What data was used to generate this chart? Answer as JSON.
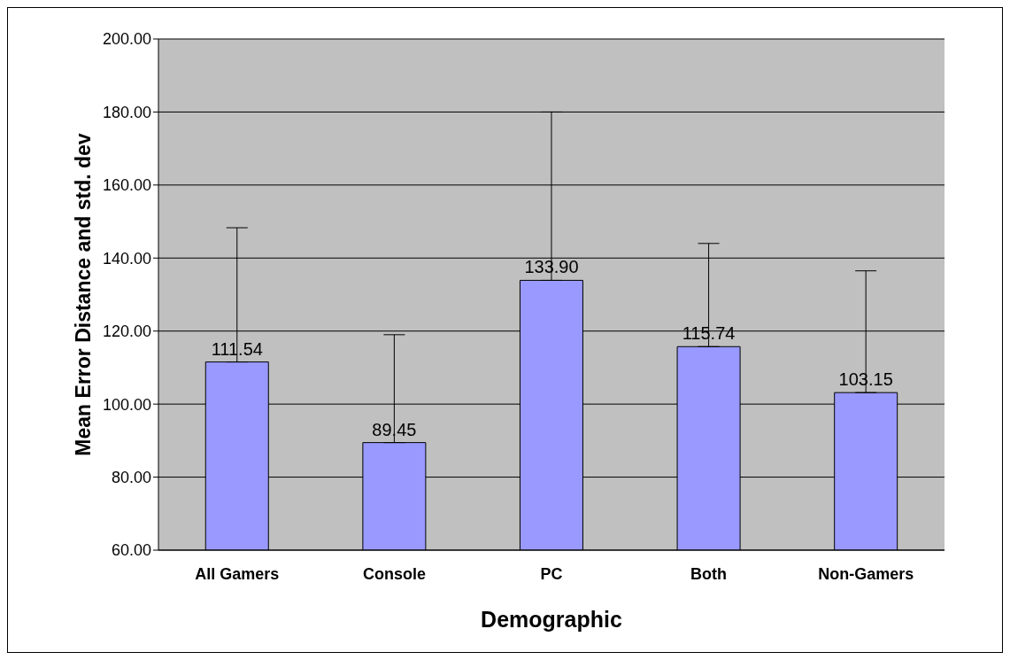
{
  "chart_data": {
    "type": "bar",
    "xlabel": "Demographic",
    "ylabel": "Mean Error Distance and std. dev",
    "categories": [
      "All Gamers",
      "Console",
      "PC",
      "Both",
      "Non-Gamers"
    ],
    "values": [
      111.54,
      89.45,
      133.9,
      115.74,
      103.15
    ],
    "errors": [
      [
        111.54,
        148.3
      ],
      [
        89.45,
        119
      ],
      [
        133.9,
        180
      ],
      [
        115.74,
        144
      ],
      [
        103.15,
        136.5
      ]
    ],
    "value_labels": [
      "111.54",
      "89.45",
      "133.90",
      "115.74",
      "103.15"
    ],
    "color": "#9999ff",
    "ylim": [
      60,
      200
    ],
    "yticks": [
      {
        "value": 60,
        "label": "60.00"
      },
      {
        "value": 80,
        "label": "80.00"
      },
      {
        "value": 100,
        "label": "100.00"
      },
      {
        "value": 120,
        "label": "120.00"
      },
      {
        "value": 140,
        "label": "140.00"
      },
      {
        "value": 160,
        "label": "160.00"
      },
      {
        "value": 180,
        "label": "180.00"
      },
      {
        "value": 200,
        "label": "200.00"
      }
    ],
    "grid": "y",
    "legend": false
  }
}
